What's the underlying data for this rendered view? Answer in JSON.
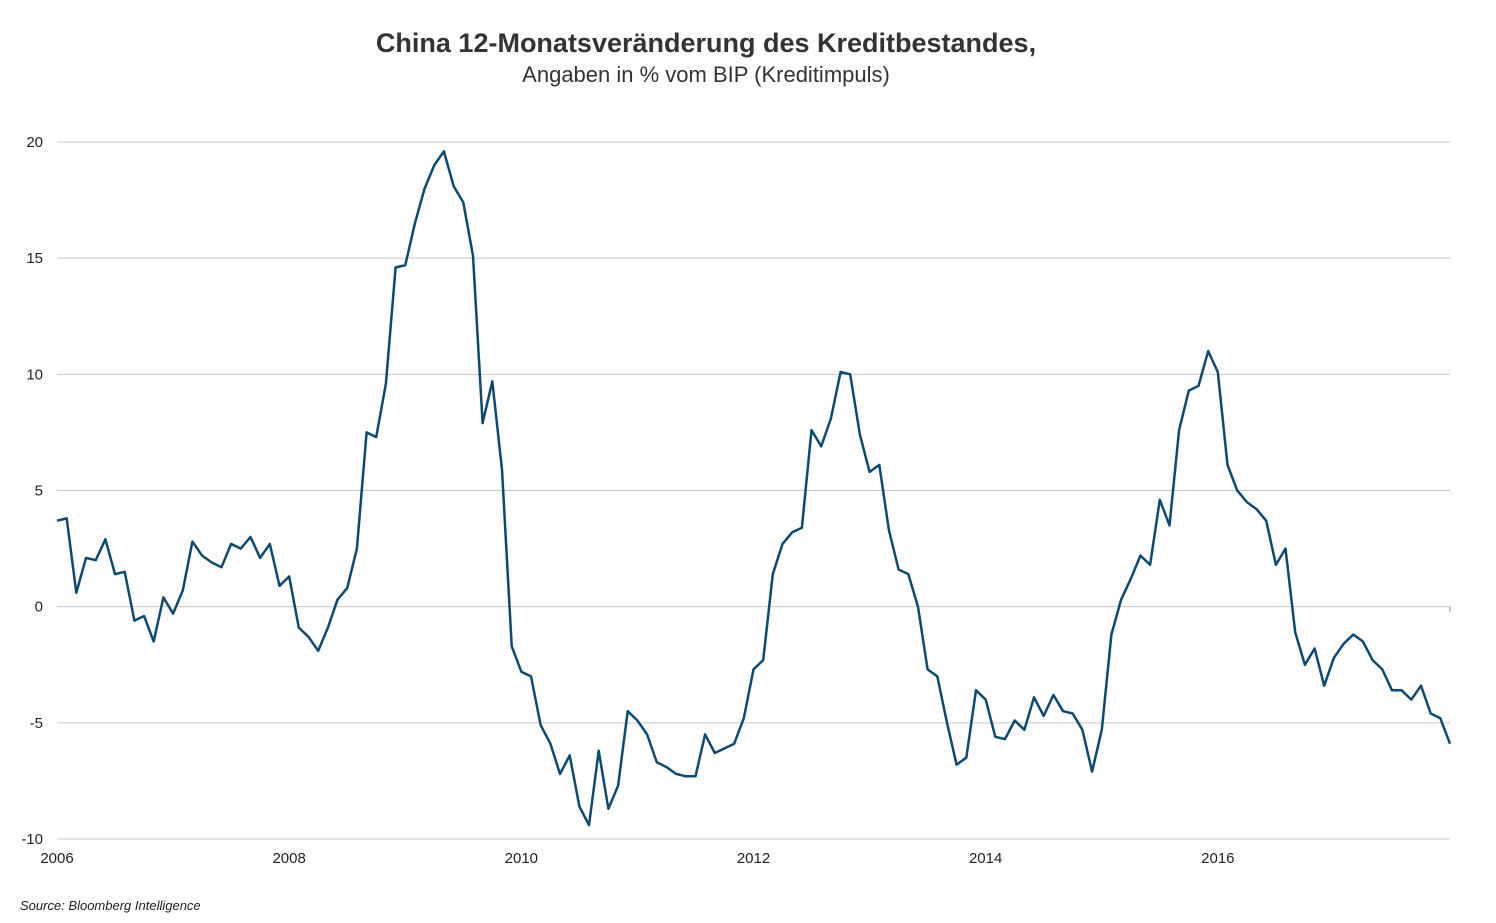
{
  "chart_data": {
    "type": "line",
    "title": "China 12-Monatsveränderung des Kreditbestandes,",
    "subtitle": "Angaben in % vom BIP (Kreditimpuls)",
    "source": "Source: Bloomberg Intelligence",
    "xlabel": "",
    "ylabel": "",
    "x_start_year": 2006,
    "x_end_year": 2018,
    "x_ticks": [
      "2006",
      "2008",
      "2010",
      "2012",
      "2014",
      "2016"
    ],
    "y_ticks": [
      "20",
      "15",
      "10",
      "5",
      "0",
      "-5",
      "-10"
    ],
    "ylim": [
      -10,
      20
    ],
    "grid": true,
    "line_color": "#0d4a72",
    "series": [
      {
        "values": [
          3.7,
          3.8,
          0.6,
          2.1,
          2.0,
          2.9,
          1.4,
          1.5,
          -0.6,
          -0.4,
          -1.5,
          0.4,
          -0.3,
          0.7,
          2.8,
          2.2,
          1.9,
          1.7,
          2.7,
          2.5,
          3.0,
          2.1,
          2.7,
          0.9,
          1.3,
          -0.9,
          -1.3,
          -1.9,
          -0.9,
          0.3,
          0.8,
          2.5,
          7.5,
          7.3,
          9.6,
          14.6,
          14.7,
          16.5,
          18.0,
          19.0,
          19.6,
          18.1,
          17.4,
          15.1,
          7.9,
          9.7,
          5.9,
          -1.7,
          -2.8,
          -3.0,
          -5.1,
          -5.9,
          -7.2,
          -6.4,
          -8.6,
          -9.4,
          -6.2,
          -8.7,
          -7.7,
          -4.5,
          -4.9,
          -5.5,
          -6.7,
          -6.9,
          -7.2,
          -7.3,
          -7.3,
          -5.5,
          -6.3,
          -6.1,
          -5.9,
          -4.8,
          -2.7,
          -2.3,
          1.4,
          2.7,
          3.2,
          3.4,
          7.6,
          6.9,
          8.1,
          10.1,
          10.0,
          7.4,
          5.8,
          6.1,
          3.3,
          1.6,
          1.4,
          0.0,
          -2.7,
          -3.0,
          -5.0,
          -6.8,
          -6.5,
          -3.6,
          -4.0,
          -5.6,
          -5.7,
          -4.9,
          -5.3,
          -3.9,
          -4.7,
          -3.8,
          -4.5,
          -4.6,
          -5.3,
          -7.1,
          -5.3,
          -1.2,
          0.3,
          1.2,
          2.2,
          1.8,
          4.6,
          3.5,
          7.6,
          9.3,
          9.5,
          11.0,
          10.1,
          6.1,
          5.0,
          4.5,
          4.2,
          3.7,
          1.8,
          2.5,
          -1.1,
          -2.5,
          -1.8,
          -3.4,
          -2.2,
          -1.6,
          -1.2,
          -1.5,
          -2.3,
          -2.7,
          -3.6,
          -3.6,
          -4.0,
          -3.4,
          -4.6,
          -4.8,
          -5.9
        ]
      }
    ]
  }
}
